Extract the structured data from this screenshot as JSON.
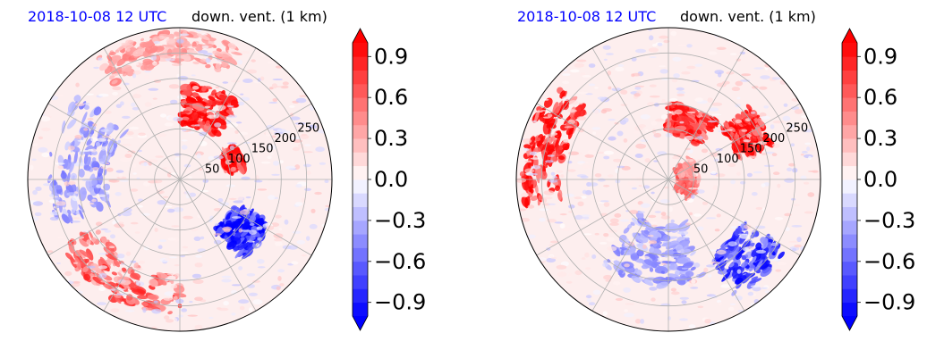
{
  "colors": {
    "positive": "#ff0000",
    "negative": "#0000ff",
    "neutral": "#ffffff",
    "grid": "#b0b0b0",
    "date_text": "#0000ff"
  },
  "chart_data": [
    {
      "type": "heatmap",
      "projection": "polar",
      "title_date": "2018-10-08 12 UTC",
      "title_var": "down. vent. (1 km)",
      "radial_ticks": [
        "50",
        "100",
        "150",
        "200",
        "250"
      ],
      "radial_values": [
        50,
        100,
        150,
        200,
        250
      ],
      "radial_max": 300,
      "colormap": "bwr",
      "vmin": -1.0,
      "vmax": 1.0,
      "colorbar_ticks": [
        "0.9",
        "0.6",
        "0.3",
        "0.0",
        "−0.3",
        "−0.6",
        "−0.9"
      ],
      "colorbar_values": [
        0.9,
        0.6,
        0.3,
        0.0,
        -0.3,
        -0.6,
        -0.9
      ],
      "extend": "both",
      "field_seed": 11,
      "features": [
        {
          "r": 150,
          "theta": 70,
          "sr": 40,
          "st": 18,
          "amp": 1.3
        },
        {
          "r": 110,
          "theta": 20,
          "sr": 18,
          "st": 10,
          "amp": 1.2
        },
        {
          "r": 160,
          "theta": -40,
          "sr": 40,
          "st": 14,
          "amp": -1.2
        },
        {
          "r": 230,
          "theta": -120,
          "sr": 40,
          "st": 30,
          "amp": 0.8
        },
        {
          "r": 200,
          "theta": 170,
          "sr": 60,
          "st": 30,
          "amp": -0.5
        },
        {
          "r": 260,
          "theta": 95,
          "sr": 30,
          "st": 30,
          "amp": 0.5
        }
      ]
    },
    {
      "type": "heatmap",
      "projection": "polar",
      "title_date": "2018-10-08 12 UTC",
      "title_var": "down. vent. (1 km)",
      "radial_ticks": [
        "50",
        "100",
        "150",
        "200",
        "250"
      ],
      "radial_values": [
        50,
        100,
        150,
        200,
        250
      ],
      "radial_max": 300,
      "colormap": "bwr",
      "vmin": -1.0,
      "vmax": 1.0,
      "colorbar_ticks": [
        "0.9",
        "0.6",
        "0.3",
        "0.0",
        "−0.3",
        "−0.6",
        "−0.9"
      ],
      "colorbar_values": [
        0.9,
        0.6,
        0.3,
        0.0,
        -0.3,
        -0.6,
        -0.9
      ],
      "extend": "both",
      "field_seed": 29,
      "features": [
        {
          "r": 180,
          "theta": 30,
          "sr": 35,
          "st": 12,
          "amp": 1.3
        },
        {
          "r": 120,
          "theta": 70,
          "sr": 30,
          "st": 20,
          "amp": 1.1
        },
        {
          "r": 250,
          "theta": 165,
          "sr": 40,
          "st": 25,
          "amp": 1.1
        },
        {
          "r": 220,
          "theta": -45,
          "sr": 50,
          "st": 15,
          "amp": -1.0
        },
        {
          "r": 150,
          "theta": -100,
          "sr": 60,
          "st": 30,
          "amp": -0.5
        },
        {
          "r": 40,
          "theta": 0,
          "sr": 20,
          "st": 40,
          "amp": 0.7
        }
      ]
    }
  ]
}
